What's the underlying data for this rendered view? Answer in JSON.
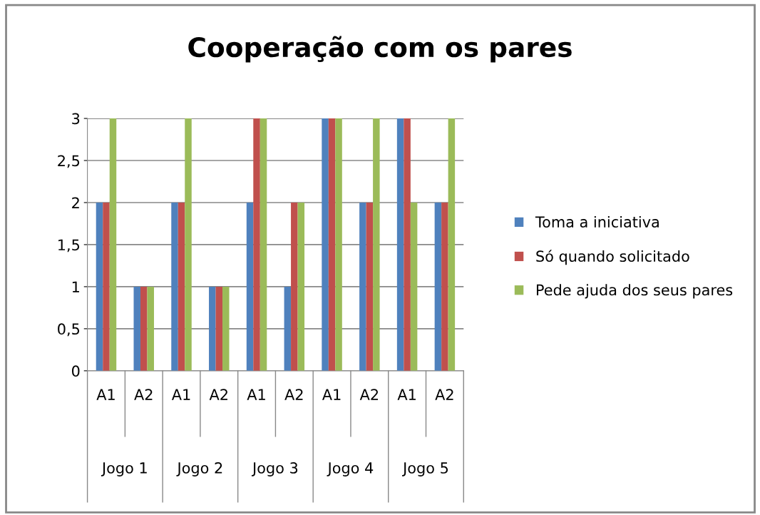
{
  "chart_data": {
    "type": "bar",
    "title": "Cooperação com os pares",
    "categories": [
      "A1",
      "A2",
      "A1",
      "A2",
      "A1",
      "A2",
      "A1",
      "A2",
      "A1",
      "A2"
    ],
    "annotations": [
      "Jogo 1",
      "Jogo 2",
      "Jogo 3",
      "Jogo 4",
      "Jogo 5"
    ],
    "series": [
      {
        "name": "Toma a iniciativa",
        "color": "#4f81bd",
        "values": [
          2,
          1,
          2,
          1,
          2,
          1,
          3,
          2,
          3,
          2
        ]
      },
      {
        "name": "Só quando solicitado",
        "color": "#c0504d",
        "values": [
          2,
          1,
          2,
          1,
          3,
          2,
          3,
          2,
          3,
          2
        ]
      },
      {
        "name": "Pede ajuda dos seus pares",
        "color": "#9bbb59",
        "values": [
          3,
          1,
          3,
          1,
          3,
          2,
          3,
          3,
          2,
          3
        ]
      }
    ],
    "ylim": [
      0,
      3
    ],
    "yticks": [
      0,
      {
        "value": 0.5,
        "label": "0,5"
      },
      1,
      {
        "value": 1.5,
        "label": "1,5"
      },
      2,
      {
        "value": 2.5,
        "label": "2,5"
      },
      3
    ],
    "grid": "y",
    "legend": "right"
  }
}
